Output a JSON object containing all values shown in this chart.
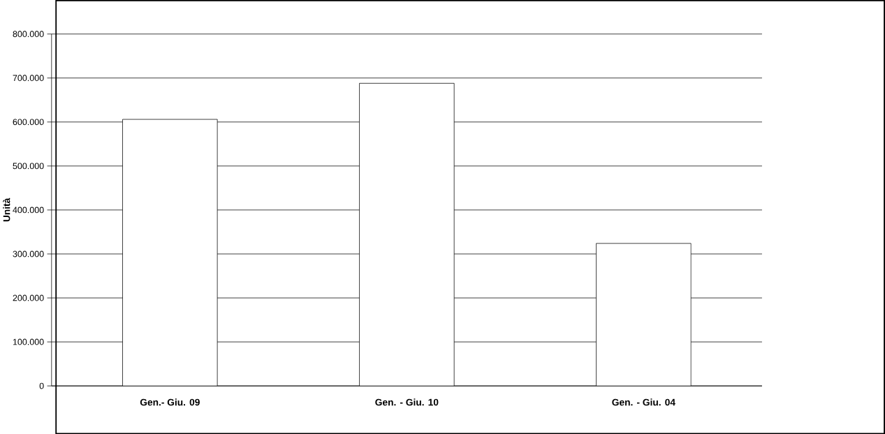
{
  "chart_data": {
    "type": "bar",
    "ylabel": "Unità",
    "categories": [
      "Gen.- Giu. 09",
      "Gen. - Giu. 10",
      "Gen. - Giu. 04"
    ],
    "values": [
      606000,
      688000,
      324000
    ],
    "color": "#ffffff",
    "ylim": [
      0,
      800000
    ],
    "yticks": [
      {
        "value": 0,
        "label": "0"
      },
      {
        "value": 100000,
        "label": "100.000"
      },
      {
        "value": 200000,
        "label": "200.000"
      },
      {
        "value": 300000,
        "label": "300.000"
      },
      {
        "value": 400000,
        "label": "400.000"
      },
      {
        "value": 500000,
        "label": "500.000"
      },
      {
        "value": 600000,
        "label": "600.000"
      },
      {
        "value": 700000,
        "label": "700.000"
      },
      {
        "value": 800000,
        "label": "800.000"
      }
    ],
    "grid": "y"
  }
}
